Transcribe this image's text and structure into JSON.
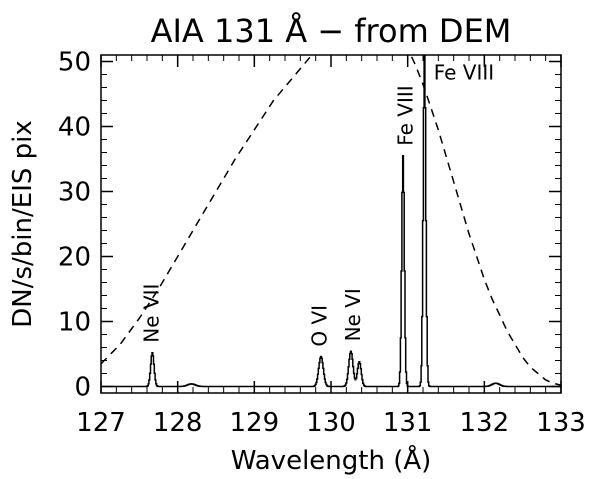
{
  "chart_data": {
    "type": "line",
    "title": "AIA 131 Å − from DEM",
    "xlabel": "Wavelength (Å)",
    "ylabel": "DN/s/bin/EIS pix",
    "xlim": [
      127,
      133
    ],
    "ylim": [
      -1,
      51
    ],
    "xticks": [
      127,
      128,
      129,
      130,
      131,
      132,
      133
    ],
    "yticks": [
      0,
      10,
      20,
      30,
      40,
      50
    ],
    "grid": false,
    "series": [
      {
        "style": "solid-histogram",
        "color": "#000000",
        "peaks": [
          {
            "x": 127.67,
            "height": 5.2,
            "sigma": 0.022
          },
          {
            "x": 128.18,
            "height": 0.4,
            "sigma": 0.05
          },
          {
            "x": 129.87,
            "height": 4.6,
            "sigma": 0.03
          },
          {
            "x": 130.26,
            "height": 5.4,
            "sigma": 0.028
          },
          {
            "x": 130.37,
            "height": 3.8,
            "sigma": 0.025
          },
          {
            "x": 130.94,
            "height": 35.5,
            "sigma": 0.017
          },
          {
            "x": 131.22,
            "height": 51,
            "sigma": 0.017
          },
          {
            "x": 132.15,
            "height": 0.5,
            "sigma": 0.05
          }
        ]
      },
      {
        "style": "dashed",
        "color": "#000000",
        "points": [
          [
            127.0,
            3.5
          ],
          [
            127.25,
            6.5
          ],
          [
            127.5,
            10.5
          ],
          [
            127.75,
            15
          ],
          [
            128.0,
            20
          ],
          [
            128.25,
            25
          ],
          [
            128.5,
            30
          ],
          [
            128.75,
            35
          ],
          [
            129.0,
            39.5
          ],
          [
            129.25,
            44
          ],
          [
            129.5,
            47.5
          ],
          [
            129.75,
            51
          ],
          [
            130.5,
            57
          ],
          [
            131.0,
            52
          ],
          [
            131.1,
            49.5
          ],
          [
            131.2,
            46.5
          ],
          [
            131.3,
            43
          ],
          [
            131.4,
            39.5
          ],
          [
            131.5,
            35.5
          ],
          [
            131.6,
            31.5
          ],
          [
            131.7,
            27.5
          ],
          [
            131.8,
            23.5
          ],
          [
            131.9,
            20
          ],
          [
            132.0,
            16.5
          ],
          [
            132.1,
            13.5
          ],
          [
            132.2,
            11
          ],
          [
            132.3,
            8.5
          ],
          [
            132.4,
            6.5
          ],
          [
            132.5,
            4.5
          ],
          [
            132.6,
            3
          ],
          [
            132.7,
            2
          ],
          [
            132.8,
            1
          ],
          [
            132.9,
            0.5
          ],
          [
            133.0,
            0.2
          ]
        ]
      }
    ],
    "annotations": [
      {
        "text": "Ne VII",
        "x": 127.66,
        "rotated": true
      },
      {
        "text": "O VI",
        "x": 129.85,
        "rotated": true
      },
      {
        "text": "Ne VI",
        "x": 130.29,
        "rotated": true
      },
      {
        "text": "Fe VIII",
        "x": 130.97,
        "rotated": true
      },
      {
        "text": "Fe VIII",
        "x": 131.34,
        "y": 46,
        "rotated": false
      }
    ]
  }
}
